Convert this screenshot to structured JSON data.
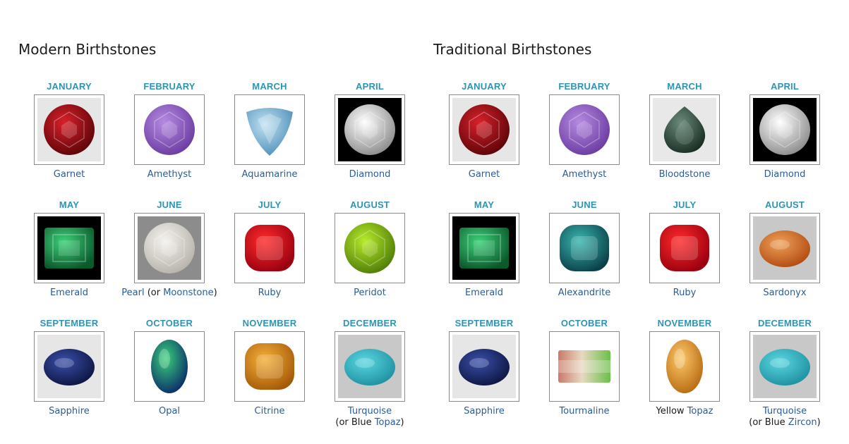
{
  "modern": {
    "title": "Modern Birthstones",
    "stones": [
      {
        "month": "JANUARY",
        "name": "Garnet",
        "icon": "garnet-icon"
      },
      {
        "month": "FEBRUARY",
        "name": "Amethyst",
        "icon": "amethyst-icon"
      },
      {
        "month": "MARCH",
        "name": "Aquamarine",
        "icon": "aquamarine-icon"
      },
      {
        "month": "APRIL",
        "name": "Diamond",
        "icon": "diamond-icon"
      },
      {
        "month": "MAY",
        "name": "Emerald",
        "icon": "emerald-icon"
      },
      {
        "month": "JUNE",
        "name": "Pearl",
        "alt_open": " (or ",
        "alt_link": "Moonstone",
        "alt_close": ")",
        "icon": "pearl-icon"
      },
      {
        "month": "JULY",
        "name": "Ruby",
        "icon": "ruby-icon"
      },
      {
        "month": "AUGUST",
        "name": "Peridot",
        "icon": "peridot-icon"
      },
      {
        "month": "SEPTEMBER",
        "name": "Sapphire",
        "icon": "sapphire-icon"
      },
      {
        "month": "OCTOBER",
        "name": "Opal",
        "icon": "opal-icon"
      },
      {
        "month": "NOVEMBER",
        "name": "Citrine",
        "icon": "citrine-icon"
      },
      {
        "month": "DECEMBER",
        "name": "Turquoise",
        "alt_open": "(or Blue ",
        "alt_link": "Topaz",
        "alt_close": ")",
        "icon": "turquoise-icon"
      }
    ]
  },
  "traditional": {
    "title": "Traditional Birthstones",
    "stones": [
      {
        "month": "JANUARY",
        "name": "Garnet",
        "icon": "garnet-icon"
      },
      {
        "month": "FEBRUARY",
        "name": "Amethyst",
        "icon": "amethyst-icon"
      },
      {
        "month": "MARCH",
        "name": "Bloodstone",
        "icon": "bloodstone-icon"
      },
      {
        "month": "APRIL",
        "name": "Diamond",
        "icon": "diamond-icon"
      },
      {
        "month": "MAY",
        "name": "Emerald",
        "icon": "emerald-icon"
      },
      {
        "month": "JUNE",
        "name": "Alexandrite",
        "icon": "alexandrite-icon"
      },
      {
        "month": "JULY",
        "name": "Ruby",
        "icon": "ruby-icon"
      },
      {
        "month": "AUGUST",
        "name": "Sardonyx",
        "icon": "sardonyx-icon"
      },
      {
        "month": "SEPTEMBER",
        "name": "Sapphire",
        "icon": "sapphire-icon"
      },
      {
        "month": "OCTOBER",
        "name": "Tourmaline",
        "icon": "tourmaline-icon"
      },
      {
        "month": "NOVEMBER",
        "prefix": "Yellow ",
        "name": "Topaz",
        "icon": "topaz-icon"
      },
      {
        "month": "DECEMBER",
        "name": "Turquoise",
        "alt_open": "(or Blue ",
        "alt_link": "Zircon",
        "alt_close": ")",
        "icon": "turquoise-icon"
      }
    ]
  },
  "colors": {
    "month_label": "#2e94b4",
    "link": "#2b5c93",
    "title": "#1a1a1a",
    "frame_border": "#8a8a8a"
  }
}
